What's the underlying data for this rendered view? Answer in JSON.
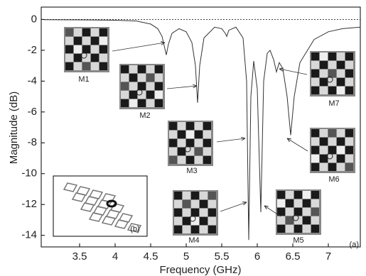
{
  "chart_data": {
    "type": "line",
    "x_label": "Frequency (GHz)",
    "y_label": "Magnitude (dB)",
    "xlim": [
      2.96,
      7.45
    ],
    "ylim": [
      -14.75,
      0.8
    ],
    "xticks": [
      3.5,
      4,
      4.5,
      5,
      5.5,
      6,
      6.5,
      7
    ],
    "yticks": [
      0,
      -2,
      -4,
      -6,
      -8,
      -10,
      -12,
      -14
    ],
    "reference_line": 0,
    "annotations": [
      "M1",
      "M2",
      "M3",
      "M4",
      "M5",
      "M6",
      "M7",
      "(a)",
      "(b)"
    ],
    "series": [
      {
        "color": "#333333",
        "x": [
          3.0,
          3.5,
          4.0,
          4.3,
          4.5,
          4.6,
          4.66,
          4.7,
          4.72,
          4.75,
          4.8,
          4.9,
          5.0,
          5.08,
          5.13,
          5.16,
          5.19,
          5.25,
          5.4,
          5.5,
          5.55,
          5.57,
          5.6,
          5.7,
          5.8,
          5.85,
          5.88,
          5.91,
          5.95,
          6.0,
          6.05,
          6.09,
          6.14,
          6.18,
          6.23,
          6.27,
          6.31,
          6.36,
          6.42,
          6.47,
          6.52,
          6.6,
          6.8,
          7.0,
          7.2,
          7.45
        ],
        "values": [
          -0.02,
          -0.03,
          -0.05,
          -0.1,
          -0.3,
          -0.6,
          -1.1,
          -1.9,
          -2.3,
          -1.6,
          -0.9,
          -0.6,
          -0.8,
          -1.5,
          -3.0,
          -5.4,
          -3.0,
          -1.2,
          -0.5,
          -0.6,
          -0.9,
          -1.1,
          -0.7,
          -0.5,
          -1.2,
          -4.0,
          -14.3,
          -5.0,
          -2.7,
          -4.5,
          -12.5,
          -4.0,
          -2.2,
          -2.0,
          -2.6,
          -3.4,
          -2.8,
          -3.2,
          -5.0,
          -7.5,
          -5.0,
          -2.8,
          -1.3,
          -0.8,
          -0.6,
          -0.5
        ]
      }
    ]
  }
}
